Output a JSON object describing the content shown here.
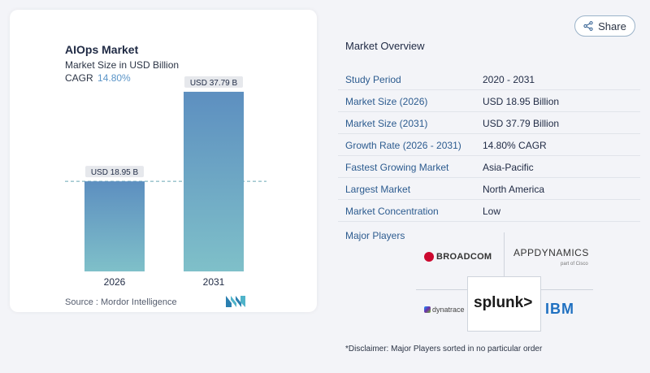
{
  "chart_data": {
    "type": "bar",
    "title": "AIOps Market",
    "subtitle": "Market Size in USD Billion",
    "cagr_label": "CAGR",
    "cagr_value": "14.80%",
    "categories": [
      "2026",
      "2031"
    ],
    "values": [
      18.95,
      37.79
    ],
    "data_labels": [
      "USD 18.95 B",
      "USD 37.79 B"
    ],
    "ylim": [
      0,
      40
    ],
    "colors": {
      "bar_top": "#5d8fc0",
      "bar_bottom": "#7fc0c9",
      "reference_line": "#6aa6b5",
      "label_bg": "#e6e8ec"
    },
    "reference_line_at": 18.95,
    "source": "Source :  Mordor Intelligence"
  },
  "share": {
    "label": "Share",
    "icon": "share-icon"
  },
  "overview": {
    "title": "Market Overview",
    "rows": [
      {
        "label": "Study Period",
        "value": "2020 - 2031"
      },
      {
        "label": "Market Size (2026)",
        "value": "USD 18.95 Billion"
      },
      {
        "label": "Market Size (2031)",
        "value": "USD 37.79 Billion"
      },
      {
        "label": "Growth Rate (2026 - 2031)",
        "value": "14.80% CAGR"
      },
      {
        "label": "Fastest Growing Market",
        "value": "Asia-Pacific"
      },
      {
        "label": "Largest Market",
        "value": "North America"
      },
      {
        "label": "Market Concentration",
        "value": "Low"
      }
    ]
  },
  "players": {
    "title": "Major Players",
    "logos": {
      "broadcom": "BROADCOM",
      "appdynamics": "APPDYNAMICS",
      "appdynamics_sub": "part of Cisco",
      "dynatrace": "dynatrace",
      "splunk": "splunk>",
      "ibm": "IBM"
    }
  },
  "disclaimer": "*Disclaimer: Major Players sorted in no particular order"
}
